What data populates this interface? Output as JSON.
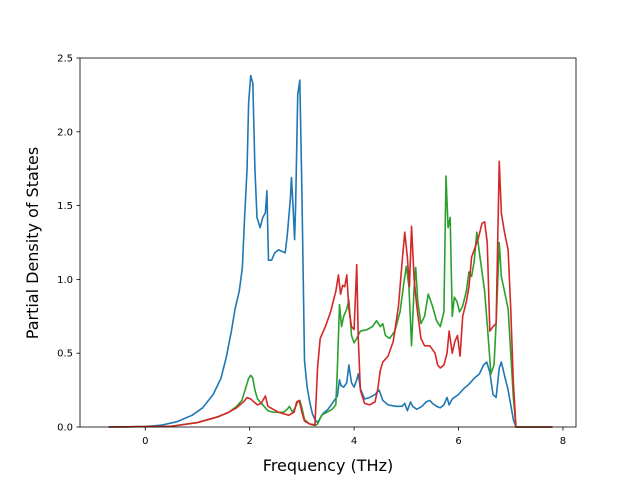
{
  "chart_data": {
    "type": "line",
    "title": "",
    "xlabel": "Frequency (THz)",
    "ylabel": "Partial Density of States",
    "xlim": [
      -1.25,
      8.25
    ],
    "ylim": [
      0,
      2.5
    ],
    "xticks": [
      0,
      2,
      4,
      6,
      8
    ],
    "yticks": [
      0.0,
      0.5,
      1.0,
      1.5,
      2.0,
      2.5
    ],
    "xtick_labels": [
      "0",
      "2",
      "4",
      "6",
      "8"
    ],
    "ytick_labels": [
      "0.0",
      "0.5",
      "1.0",
      "1.5",
      "2.0",
      "2.5"
    ],
    "grid": false,
    "legend": "none",
    "series": [
      {
        "color": "#1f77b4",
        "points": [
          [
            -0.7,
            0
          ],
          [
            0,
            0.003
          ],
          [
            0.3,
            0.012
          ],
          [
            0.6,
            0.035
          ],
          [
            0.9,
            0.08
          ],
          [
            1.1,
            0.13
          ],
          [
            1.3,
            0.22
          ],
          [
            1.45,
            0.33
          ],
          [
            1.55,
            0.47
          ],
          [
            1.65,
            0.65
          ],
          [
            1.72,
            0.8
          ],
          [
            1.8,
            0.92
          ],
          [
            1.86,
            1.08
          ],
          [
            1.9,
            1.4
          ],
          [
            1.95,
            1.75
          ],
          [
            1.98,
            2.2
          ],
          [
            2.02,
            2.38
          ],
          [
            2.06,
            2.33
          ],
          [
            2.1,
            1.75
          ],
          [
            2.14,
            1.42
          ],
          [
            2.2,
            1.35
          ],
          [
            2.25,
            1.42
          ],
          [
            2.3,
            1.45
          ],
          [
            2.33,
            1.6
          ],
          [
            2.36,
            1.13
          ],
          [
            2.42,
            1.13
          ],
          [
            2.48,
            1.18
          ],
          [
            2.55,
            1.2
          ],
          [
            2.62,
            1.19
          ],
          [
            2.68,
            1.18
          ],
          [
            2.72,
            1.3
          ],
          [
            2.78,
            1.55
          ],
          [
            2.8,
            1.69
          ],
          [
            2.83,
            1.5
          ],
          [
            2.86,
            1.27
          ],
          [
            2.88,
            1.5
          ],
          [
            2.92,
            2.25
          ],
          [
            2.96,
            2.35
          ],
          [
            3.0,
            1.6
          ],
          [
            3.05,
            0.45
          ],
          [
            3.1,
            0.27
          ],
          [
            3.15,
            0.17
          ],
          [
            3.2,
            0.09
          ],
          [
            3.25,
            0.05
          ],
          [
            3.3,
            0.03
          ],
          [
            3.35,
            0.06
          ],
          [
            3.4,
            0.09
          ],
          [
            3.5,
            0.12
          ],
          [
            3.6,
            0.17
          ],
          [
            3.68,
            0.21
          ],
          [
            3.72,
            0.32
          ],
          [
            3.75,
            0.28
          ],
          [
            3.8,
            0.27
          ],
          [
            3.86,
            0.3
          ],
          [
            3.9,
            0.42
          ],
          [
            3.95,
            0.3
          ],
          [
            4.0,
            0.27
          ],
          [
            4.05,
            0.32
          ],
          [
            4.08,
            0.36
          ],
          [
            4.12,
            0.26
          ],
          [
            4.2,
            0.19
          ],
          [
            4.3,
            0.2
          ],
          [
            4.4,
            0.22
          ],
          [
            4.48,
            0.25
          ],
          [
            4.55,
            0.18
          ],
          [
            4.65,
            0.15
          ],
          [
            4.8,
            0.14
          ],
          [
            4.92,
            0.14
          ],
          [
            4.97,
            0.16
          ],
          [
            5.02,
            0.11
          ],
          [
            5.08,
            0.17
          ],
          [
            5.12,
            0.14
          ],
          [
            5.2,
            0.12
          ],
          [
            5.3,
            0.14
          ],
          [
            5.38,
            0.17
          ],
          [
            5.45,
            0.18
          ],
          [
            5.5,
            0.16
          ],
          [
            5.58,
            0.14
          ],
          [
            5.65,
            0.13
          ],
          [
            5.72,
            0.15
          ],
          [
            5.78,
            0.2
          ],
          [
            5.82,
            0.15
          ],
          [
            5.88,
            0.19
          ],
          [
            6.0,
            0.22
          ],
          [
            6.1,
            0.26
          ],
          [
            6.2,
            0.29
          ],
          [
            6.3,
            0.33
          ],
          [
            6.4,
            0.36
          ],
          [
            6.48,
            0.42
          ],
          [
            6.54,
            0.44
          ],
          [
            6.6,
            0.37
          ],
          [
            6.66,
            0.22
          ],
          [
            6.72,
            0.2
          ],
          [
            6.78,
            0.4
          ],
          [
            6.82,
            0.44
          ],
          [
            6.88,
            0.35
          ],
          [
            6.95,
            0.25
          ],
          [
            7.0,
            0.15
          ],
          [
            7.05,
            0.05
          ],
          [
            7.1,
            0
          ],
          [
            7.8,
            0
          ]
        ]
      },
      {
        "color": "#2ca02c",
        "points": [
          [
            -0.7,
            0
          ],
          [
            0.5,
            0.005
          ],
          [
            1.0,
            0.03
          ],
          [
            1.4,
            0.07
          ],
          [
            1.6,
            0.1
          ],
          [
            1.75,
            0.14
          ],
          [
            1.85,
            0.18
          ],
          [
            1.92,
            0.26
          ],
          [
            1.98,
            0.33
          ],
          [
            2.02,
            0.35
          ],
          [
            2.06,
            0.33
          ],
          [
            2.1,
            0.25
          ],
          [
            2.15,
            0.19
          ],
          [
            2.2,
            0.17
          ],
          [
            2.3,
            0.13
          ],
          [
            2.35,
            0.11
          ],
          [
            2.45,
            0.1
          ],
          [
            2.55,
            0.1
          ],
          [
            2.65,
            0.1
          ],
          [
            2.72,
            0.12
          ],
          [
            2.76,
            0.14
          ],
          [
            2.82,
            0.1
          ],
          [
            2.87,
            0.13
          ],
          [
            2.92,
            0.17
          ],
          [
            2.96,
            0.18
          ],
          [
            3.0,
            0.13
          ],
          [
            3.05,
            0.05
          ],
          [
            3.15,
            0.02
          ],
          [
            3.25,
            0.01
          ],
          [
            3.3,
            0.02
          ],
          [
            3.38,
            0.08
          ],
          [
            3.48,
            0.1
          ],
          [
            3.58,
            0.12
          ],
          [
            3.65,
            0.15
          ],
          [
            3.68,
            0.4
          ],
          [
            3.72,
            0.83
          ],
          [
            3.76,
            0.68
          ],
          [
            3.8,
            0.75
          ],
          [
            3.86,
            0.8
          ],
          [
            3.9,
            0.86
          ],
          [
            3.95,
            0.62
          ],
          [
            4.0,
            0.57
          ],
          [
            4.05,
            0.6
          ],
          [
            4.12,
            0.65
          ],
          [
            4.25,
            0.66
          ],
          [
            4.35,
            0.68
          ],
          [
            4.43,
            0.72
          ],
          [
            4.5,
            0.68
          ],
          [
            4.55,
            0.7
          ],
          [
            4.6,
            0.62
          ],
          [
            4.68,
            0.6
          ],
          [
            4.78,
            0.65
          ],
          [
            4.88,
            0.78
          ],
          [
            4.95,
            0.97
          ],
          [
            5.0,
            1.09
          ],
          [
            5.05,
            0.95
          ],
          [
            5.1,
            0.55
          ],
          [
            5.15,
            0.95
          ],
          [
            5.18,
            1.08
          ],
          [
            5.22,
            0.85
          ],
          [
            5.28,
            0.7
          ],
          [
            5.35,
            0.75
          ],
          [
            5.42,
            0.9
          ],
          [
            5.5,
            0.82
          ],
          [
            5.58,
            0.72
          ],
          [
            5.65,
            0.68
          ],
          [
            5.72,
            0.78
          ],
          [
            5.76,
            1.7
          ],
          [
            5.8,
            1.35
          ],
          [
            5.84,
            1.42
          ],
          [
            5.88,
            0.75
          ],
          [
            5.92,
            0.88
          ],
          [
            5.97,
            0.85
          ],
          [
            6.02,
            0.78
          ],
          [
            6.08,
            0.82
          ],
          [
            6.15,
            0.92
          ],
          [
            6.2,
            1.05
          ],
          [
            6.25,
            1.02
          ],
          [
            6.3,
            1.12
          ],
          [
            6.35,
            1.32
          ],
          [
            6.4,
            1.18
          ],
          [
            6.5,
            0.92
          ],
          [
            6.56,
            0.65
          ],
          [
            6.62,
            0.36
          ],
          [
            6.68,
            0.42
          ],
          [
            6.72,
            0.7
          ],
          [
            6.78,
            1.25
          ],
          [
            6.82,
            1.02
          ],
          [
            6.88,
            0.92
          ],
          [
            6.95,
            0.8
          ],
          [
            7.0,
            0.5
          ],
          [
            7.05,
            0.2
          ],
          [
            7.1,
            0
          ],
          [
            7.8,
            0
          ]
        ]
      },
      {
        "color": "#d62728",
        "points": [
          [
            -0.7,
            0
          ],
          [
            0.5,
            0.005
          ],
          [
            1.0,
            0.03
          ],
          [
            1.4,
            0.07
          ],
          [
            1.6,
            0.1
          ],
          [
            1.75,
            0.13
          ],
          [
            1.88,
            0.17
          ],
          [
            1.95,
            0.2
          ],
          [
            2.02,
            0.19
          ],
          [
            2.08,
            0.17
          ],
          [
            2.15,
            0.15
          ],
          [
            2.22,
            0.16
          ],
          [
            2.3,
            0.21
          ],
          [
            2.35,
            0.14
          ],
          [
            2.45,
            0.12
          ],
          [
            2.55,
            0.1
          ],
          [
            2.65,
            0.09
          ],
          [
            2.75,
            0.08
          ],
          [
            2.85,
            0.1
          ],
          [
            2.9,
            0.17
          ],
          [
            2.95,
            0.18
          ],
          [
            3.0,
            0.1
          ],
          [
            3.05,
            0.04
          ],
          [
            3.15,
            0.02
          ],
          [
            3.25,
            0.015
          ],
          [
            3.3,
            0.4
          ],
          [
            3.35,
            0.6
          ],
          [
            3.45,
            0.68
          ],
          [
            3.55,
            0.78
          ],
          [
            3.65,
            0.92
          ],
          [
            3.7,
            1.03
          ],
          [
            3.74,
            0.9
          ],
          [
            3.78,
            0.96
          ],
          [
            3.82,
            0.95
          ],
          [
            3.86,
            1.03
          ],
          [
            3.9,
            0.8
          ],
          [
            3.95,
            0.68
          ],
          [
            4.0,
            0.66
          ],
          [
            4.05,
            1.1
          ],
          [
            4.08,
            0.6
          ],
          [
            4.12,
            0.25
          ],
          [
            4.2,
            0.16
          ],
          [
            4.3,
            0.15
          ],
          [
            4.4,
            0.17
          ],
          [
            4.45,
            0.25
          ],
          [
            4.5,
            0.38
          ],
          [
            4.55,
            0.44
          ],
          [
            4.65,
            0.48
          ],
          [
            4.75,
            0.58
          ],
          [
            4.85,
            0.82
          ],
          [
            4.92,
            1.12
          ],
          [
            4.97,
            1.32
          ],
          [
            5.02,
            1.15
          ],
          [
            5.06,
            0.95
          ],
          [
            5.1,
            1.36
          ],
          [
            5.15,
            1.0
          ],
          [
            5.2,
            0.82
          ],
          [
            5.28,
            0.6
          ],
          [
            5.35,
            0.55
          ],
          [
            5.45,
            0.55
          ],
          [
            5.55,
            0.5
          ],
          [
            5.6,
            0.42
          ],
          [
            5.65,
            0.4
          ],
          [
            5.72,
            0.42
          ],
          [
            5.78,
            0.5
          ],
          [
            5.82,
            0.65
          ],
          [
            5.88,
            0.5
          ],
          [
            5.93,
            0.58
          ],
          [
            5.98,
            0.62
          ],
          [
            6.03,
            0.48
          ],
          [
            6.08,
            0.75
          ],
          [
            6.15,
            0.85
          ],
          [
            6.2,
            0.95
          ],
          [
            6.25,
            1.15
          ],
          [
            6.3,
            1.2
          ],
          [
            6.38,
            1.28
          ],
          [
            6.45,
            1.38
          ],
          [
            6.5,
            1.39
          ],
          [
            6.55,
            1.25
          ],
          [
            6.6,
            0.65
          ],
          [
            6.66,
            0.68
          ],
          [
            6.72,
            0.7
          ],
          [
            6.78,
            1.8
          ],
          [
            6.82,
            1.45
          ],
          [
            6.88,
            1.32
          ],
          [
            6.95,
            1.2
          ],
          [
            7.0,
            0.8
          ],
          [
            7.05,
            0.3
          ],
          [
            7.1,
            0
          ],
          [
            7.8,
            0
          ]
        ]
      }
    ]
  }
}
